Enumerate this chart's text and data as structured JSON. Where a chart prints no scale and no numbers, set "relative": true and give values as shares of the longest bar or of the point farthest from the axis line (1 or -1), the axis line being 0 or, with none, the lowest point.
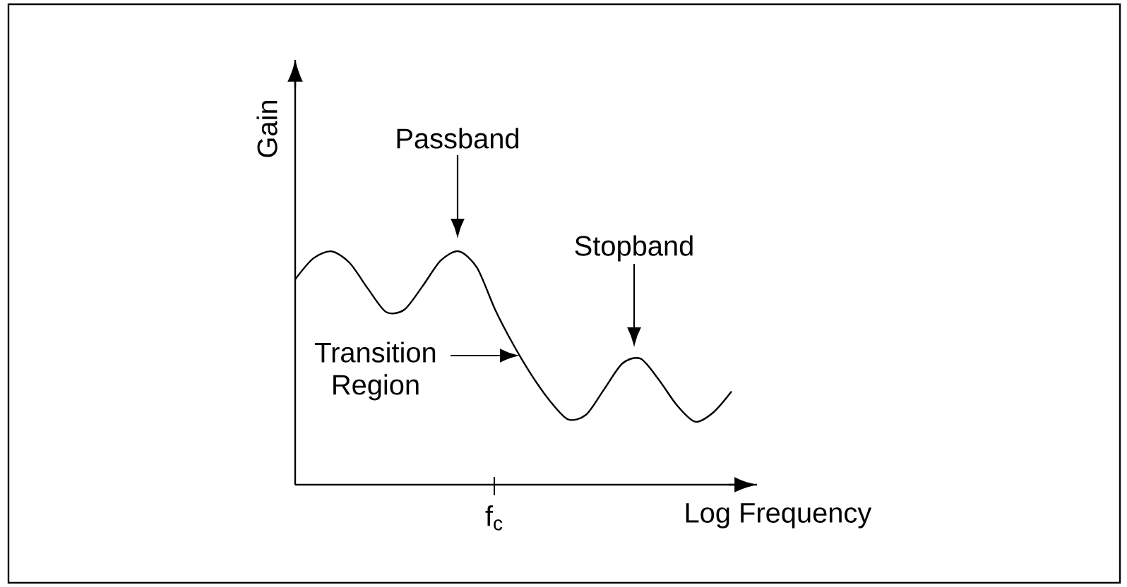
{
  "chart_data": {
    "type": "line",
    "relative": true,
    "xlabel": "Log Frequency",
    "ylabel": "Gain",
    "color": "#000000",
    "categories": [
      null,
      null,
      null,
      null,
      null,
      null,
      null,
      null,
      null,
      null,
      null,
      null,
      null,
      null,
      null,
      null,
      null,
      null,
      null,
      null,
      null,
      null,
      null,
      null,
      null
    ],
    "values": [
      0.88,
      0.97,
      1.0,
      0.95,
      0.84,
      0.74,
      0.75,
      0.85,
      0.96,
      1.0,
      0.93,
      0.75,
      0.6,
      0.47,
      0.36,
      0.28,
      0.3,
      0.41,
      0.52,
      0.54,
      0.45,
      0.34,
      0.27,
      0.31,
      0.4
    ],
    "annotations": [
      "Passband",
      "Transition Region",
      "Stopband",
      "f$_{c}$"
    ]
  }
}
